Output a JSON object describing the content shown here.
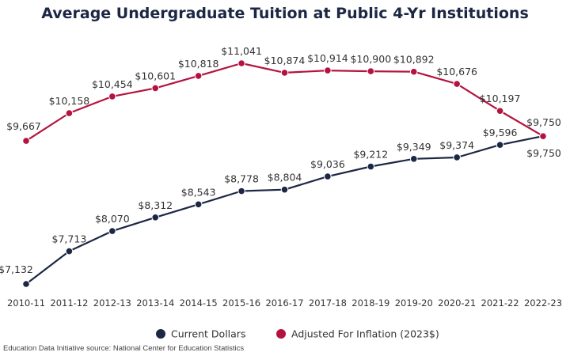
{
  "chart_data": {
    "type": "line",
    "title": "Average Undergraduate Tuition at Public 4-Yr Institutions",
    "categories": [
      "2010-11",
      "2011-12",
      "2012-13",
      "2013-14",
      "2014-15",
      "2015-16",
      "2016-17",
      "2017-18",
      "2018-19",
      "2019-20",
      "2020-21",
      "2021-22",
      "2022-23"
    ],
    "series": [
      {
        "name": "Current Dollars",
        "color": "#1c2744",
        "values": [
          7132,
          7713,
          8070,
          8312,
          8543,
          8778,
          8804,
          9036,
          9212,
          9349,
          9374,
          9596,
          9750
        ],
        "labels": [
          "$7,132",
          "$7,713",
          "$8,070",
          "$8,312",
          "$8,543",
          "$8,778",
          "$8,804",
          "$9,036",
          "$9,212",
          "$9,349",
          "$9,374",
          "$9,596",
          "$9,750"
        ]
      },
      {
        "name": "Adjusted For Inflation (2023$)",
        "color": "#b5133f",
        "values": [
          9667,
          10158,
          10454,
          10601,
          10818,
          11041,
          10874,
          10914,
          10900,
          10892,
          10676,
          10197,
          9750
        ],
        "labels": [
          "$9,667",
          "$10,158",
          "$10,454",
          "$10,601",
          "$10,818",
          "$11,041",
          "$10,874",
          "$10,914",
          "$10,900",
          "$10,892",
          "$10,676",
          "$10,197",
          "$9,750"
        ]
      }
    ],
    "ylim": [
      7132,
      11041
    ],
    "grid": false,
    "legend_position": "bottom"
  },
  "source": "Education Data Initiative source: National Center for Education Statistics"
}
